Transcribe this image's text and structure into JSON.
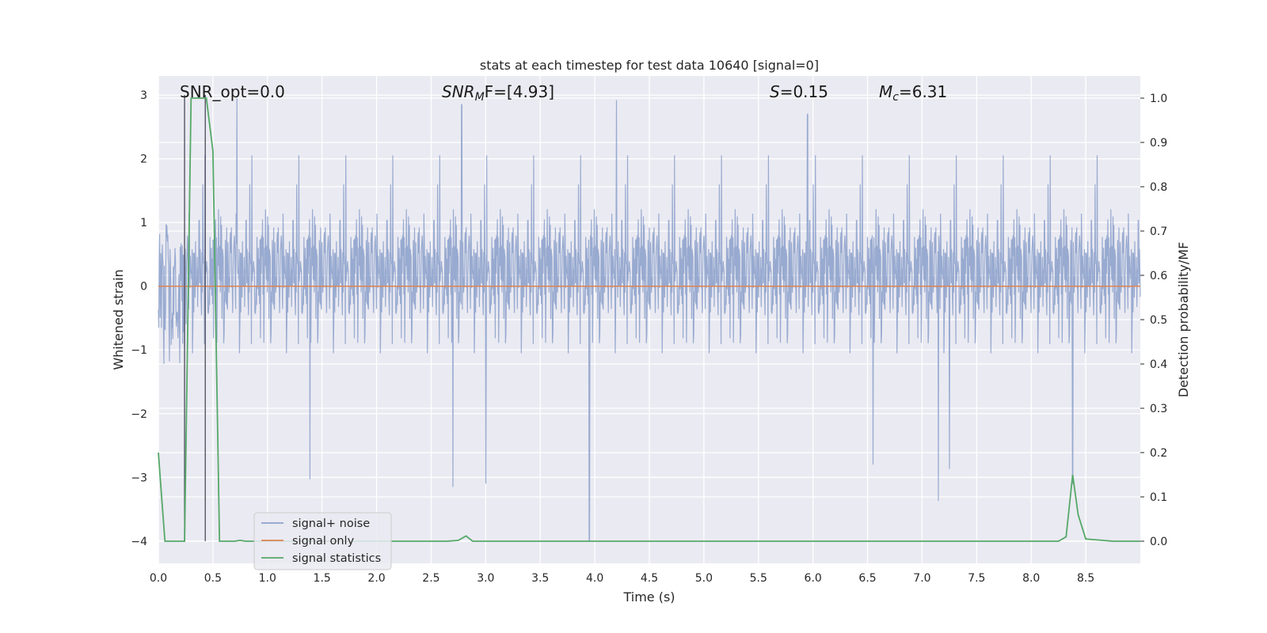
{
  "chart_data": {
    "type": "line",
    "title": "stats at each timestep for test data 10640 [signal=0]",
    "xlabel": "Time (s)",
    "ylabel_left": "Whitened strain",
    "ylabel_right": "Detection probability/MF",
    "xlim": [
      0.0,
      9.0
    ],
    "ylim_left": [
      -4.35,
      3.3
    ],
    "ylim_right": [
      -0.05,
      1.05
    ],
    "x_ticks": [
      "0.0",
      "0.5",
      "1.0",
      "1.5",
      "2.0",
      "2.5",
      "3.0",
      "3.5",
      "4.0",
      "4.5",
      "5.0",
      "5.5",
      "6.0",
      "6.5",
      "7.0",
      "7.5",
      "8.0",
      "8.5"
    ],
    "y_ticks_left": [
      "3",
      "2",
      "1",
      "0",
      "−1",
      "−2",
      "−3",
      "−4"
    ],
    "y_ticks_right": [
      "1.0",
      "0.9",
      "0.8",
      "0.7",
      "0.6",
      "0.5",
      "0.4",
      "0.3",
      "0.2",
      "0.1",
      "0.0"
    ],
    "grid": true,
    "legend_position": "lower-left",
    "annotations": {
      "snr_opt": "SNR_opt=0.0",
      "snr_mf_base": "SNR",
      "snr_mf_sub": "M",
      "snr_mf_rest": "F=[4.93]",
      "s_symbol": "S",
      "s_value": "=0.15",
      "mc_symbol": "M",
      "mc_sub": "c",
      "mc_value": "=6.31"
    },
    "series": [
      {
        "name": "signal+ noise",
        "color": "#8fa3cc",
        "axis": "left",
        "description_envelope": {
          "upper_typical": 1.7,
          "lower_typical": -1.7,
          "spikes": [
            {
              "x": 0.72,
              "y": 2.95
            },
            {
              "x": 2.78,
              "y": 2.85
            },
            {
              "x": 4.2,
              "y": 2.92
            },
            {
              "x": 5.95,
              "y": 2.7
            },
            {
              "x": 1.39,
              "y": -3.03
            },
            {
              "x": 2.7,
              "y": -3.15
            },
            {
              "x": 3.0,
              "y": -3.1
            },
            {
              "x": 3.95,
              "y": -4.0
            },
            {
              "x": 7.15,
              "y": -3.37
            },
            {
              "x": 8.38,
              "y": -3.1
            },
            {
              "x": 6.55,
              "y": -2.8
            },
            {
              "x": 7.25,
              "y": -2.87
            }
          ]
        }
      },
      {
        "name": "signal only",
        "color": "#dd8452",
        "axis": "left",
        "values_constant": 0.0
      },
      {
        "name": "signal statistics",
        "color": "#55a868",
        "axis": "right",
        "x": [
          0.0,
          0.03,
          0.06,
          0.1,
          0.24,
          0.3,
          0.44,
          0.5,
          0.56,
          0.7,
          0.75,
          0.8,
          2.65,
          2.75,
          2.82,
          2.88,
          3.1,
          8.25,
          8.32,
          8.38,
          8.43,
          8.5,
          8.75,
          9.0
        ],
        "y": [
          0.2,
          0.1,
          0.0,
          0.0,
          0.0,
          1.0,
          1.0,
          0.88,
          0.0,
          0.0,
          0.002,
          0.0,
          0.0,
          0.002,
          0.012,
          0.0,
          0.0,
          0.0,
          0.01,
          0.15,
          0.06,
          0.005,
          0.0,
          0.0
        ]
      },
      {
        "name": "marker lines",
        "color": "#555566",
        "axis": "left",
        "vertical_lines_x": [
          0.24,
          0.43
        ]
      }
    ]
  }
}
